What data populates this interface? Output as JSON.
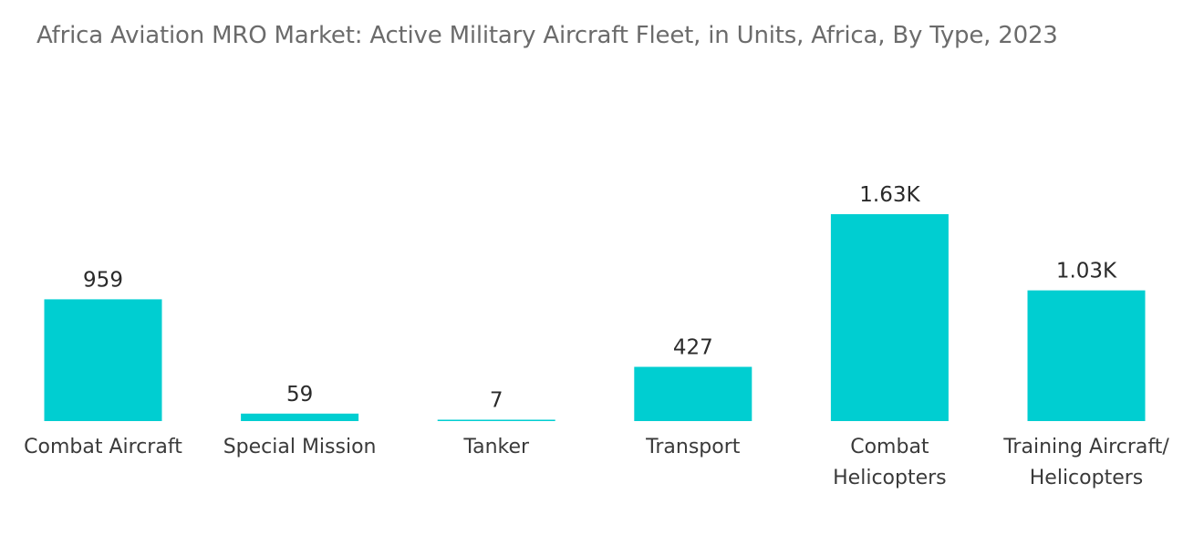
{
  "chart_data": {
    "type": "bar",
    "title": "Africa Aviation MRO Market: Active Military Aircraft Fleet, in Units, Africa, By Type, 2023",
    "xlabel": "",
    "ylabel": "",
    "categories": [
      [
        "Combat Aircraft"
      ],
      [
        "Special Mission"
      ],
      [
        "Tanker"
      ],
      [
        "Transport"
      ],
      [
        "Combat",
        "Helicopters"
      ],
      [
        "Training Aircraft/",
        "Helicopters"
      ]
    ],
    "values": [
      959,
      59,
      7,
      427,
      1630,
      1030
    ],
    "value_labels": [
      "959",
      "59",
      "7",
      "427",
      "1.63K",
      "1.03K"
    ],
    "ylim": [
      0,
      1630
    ],
    "grid": false,
    "legend": "none",
    "colors": {
      "bar": "#00CED1"
    }
  }
}
